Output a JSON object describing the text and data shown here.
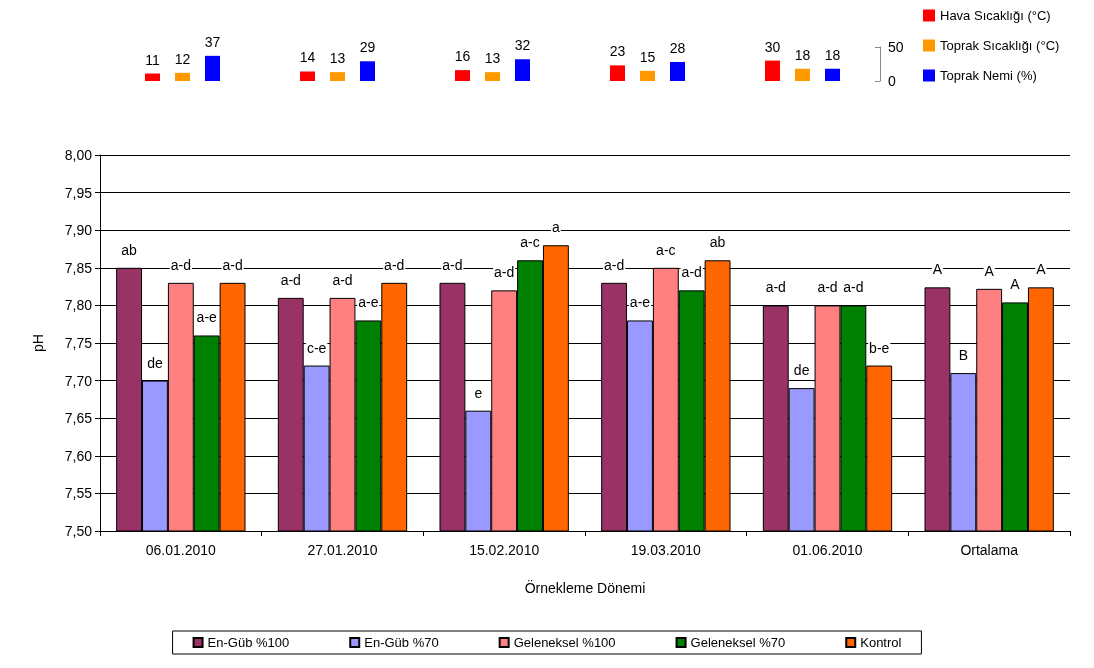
{
  "chart_data": [
    {
      "type": "bar",
      "categories": [
        null,
        null,
        null,
        null,
        null
      ],
      "series": [
        {
          "name": "Hava Sıcaklığı (°C)",
          "color": "#ff0000",
          "values": [
            11,
            14,
            16,
            23,
            30
          ]
        },
        {
          "name": "Toprak Sıcaklığı (°C)",
          "color": "#ff9900",
          "values": [
            12,
            13,
            13,
            15,
            18
          ]
        },
        {
          "name": "Toprak Nemi (%)",
          "color": "#0000ff",
          "values": [
            37,
            29,
            32,
            28,
            18
          ]
        }
      ],
      "ylim": [
        0,
        50
      ],
      "yticks": [
        0,
        50
      ],
      "data_labels": true,
      "legend": "right",
      "tick_labels": "y",
      "grid": false
    },
    {
      "type": "bar",
      "xlabel": "Örnekleme Dönemi",
      "ylabel": "pH",
      "categories": [
        "06.01.2010",
        "27.01.2010",
        "15.02.2010",
        "19.03.2010",
        "01.06.2010",
        "Ortalama"
      ],
      "series": [
        {
          "name": "En-Güb %100",
          "color": "#993366",
          "values": [
            7.85,
            7.81,
            7.83,
            7.83,
            7.8,
            7.824
          ],
          "value_labels": [
            "ab",
            "a-d",
            "a-d",
            "a-d",
            "a-d",
            "A"
          ]
        },
        {
          "name": "En-Güb %70",
          "color": "#9999ff",
          "values": [
            7.7,
            7.72,
            7.66,
            7.78,
            7.69,
            7.71
          ],
          "value_labels": [
            "de",
            "c-e",
            "e",
            "a-e",
            "de",
            "B"
          ]
        },
        {
          "name": "Geleneksel %100",
          "color": "#ff8080",
          "values": [
            7.83,
            7.81,
            7.82,
            7.85,
            7.8,
            7.822
          ],
          "value_labels": [
            "a-d",
            "a-d",
            "a-d",
            "a-c",
            "a-d",
            "A"
          ]
        },
        {
          "name": "Geleneksel %70",
          "color": "#008000",
          "values": [
            7.76,
            7.78,
            7.86,
            7.82,
            7.8,
            7.804
          ],
          "value_labels": [
            "a-e",
            "a-e",
            "a-c",
            "a-d",
            "a-d",
            "A"
          ]
        },
        {
          "name": "Kontrol",
          "color": "#ff6600",
          "values": [
            7.83,
            7.83,
            7.88,
            7.86,
            7.72,
            7.824
          ],
          "value_labels": [
            "a-d",
            "a-d",
            "a",
            "ab",
            "b-e",
            "A"
          ]
        }
      ],
      "ylim": [
        7.5,
        8.0
      ],
      "yticks": [
        {
          "value": 7.5,
          "label": "7,50"
        },
        {
          "value": 7.55,
          "label": "7,55"
        },
        {
          "value": 7.6,
          "label": "7,60"
        },
        {
          "value": 7.65,
          "label": "7,65"
        },
        {
          "value": 7.7,
          "label": "7,70"
        },
        {
          "value": 7.75,
          "label": "7,75"
        },
        {
          "value": 7.8,
          "label": "7,80"
        },
        {
          "value": 7.85,
          "label": "7,85"
        },
        {
          "value": 7.9,
          "label": "7,90"
        },
        {
          "value": 7.95,
          "label": "7,95"
        },
        {
          "value": 8.0,
          "label": "8,00"
        }
      ],
      "grid": "y",
      "legend": "bottom"
    }
  ]
}
